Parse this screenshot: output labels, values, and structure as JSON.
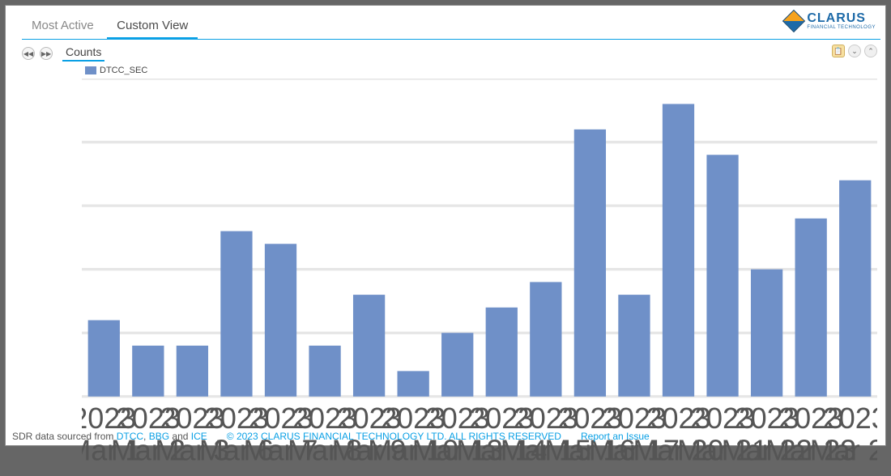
{
  "logo": {
    "main": "CLARUS",
    "sub": "FINANCIAL TECHNOLOGY"
  },
  "tabs": {
    "most_active": "Most Active",
    "custom_view": "Custom View",
    "active_index": 1
  },
  "subtitle": "Counts",
  "toolbar_icons": {
    "clipboard": "📋",
    "down": "⌄",
    "up": "⌃"
  },
  "nav_icons": {
    "back": "◀◀",
    "fwd": "▶▶"
  },
  "chart": {
    "type": "bar",
    "series_label": "DTCC_SEC",
    "bar_color": "#6f90c8",
    "background_color": "#ffffff",
    "grid_color": "#e6e6e6",
    "y": {
      "min": 0,
      "max": 25,
      "step": 5
    },
    "label_fontsize": 11,
    "bar_width_ratio": 0.72,
    "categories_year": "2023",
    "categories": [
      "Mar 1",
      "Mar 2",
      "Mar 3",
      "Mar 6",
      "Mar 7",
      "Mar 8",
      "Mar 9",
      "Mar 10",
      "Mar 13",
      "Mar 14",
      "Mar 15",
      "Mar 16",
      "Mar 17",
      "Mar 20",
      "Mar 21",
      "Mar 22",
      "Mar 23",
      "Mar 24"
    ],
    "values": [
      6,
      4,
      4,
      13,
      12,
      4,
      8,
      2,
      5,
      7,
      9,
      21,
      8,
      23,
      19,
      10,
      14,
      17
    ]
  },
  "footer": {
    "prefix": "SDR data sourced from ",
    "src1": "DTCC",
    "sep1": ", ",
    "src2": "BBG",
    "sep2": " and ",
    "src3": "ICE",
    "copyright": "© 2023 CLARUS FINANCIAL TECHNOLOGY LTD. ALL RIGHTS RESERVED",
    "report": "Report an Issue"
  }
}
